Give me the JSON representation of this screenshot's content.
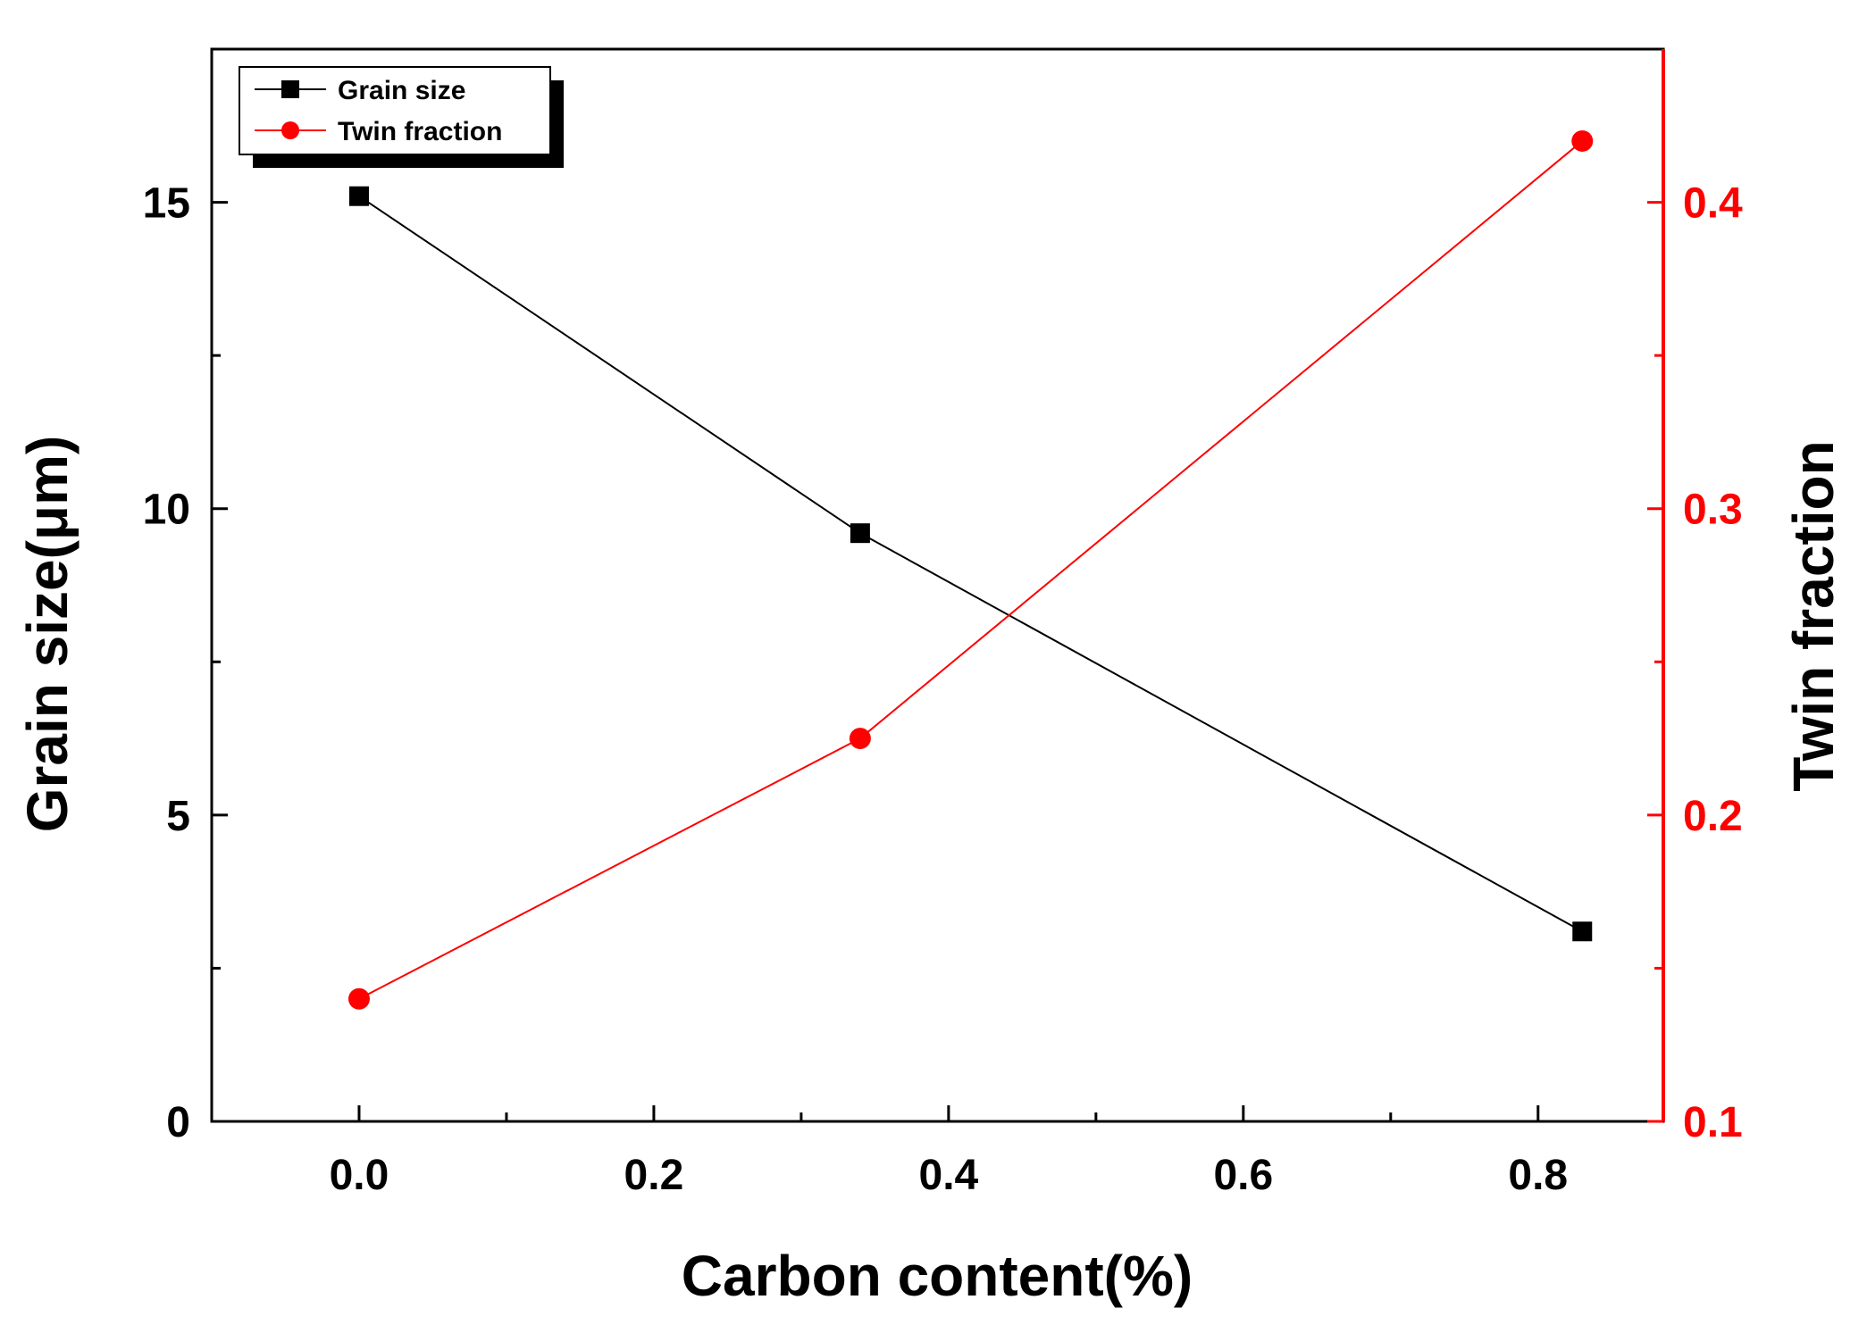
{
  "chart_data": {
    "type": "line",
    "title": "",
    "xlabel": "Carbon content(%)",
    "ylabel": "Grain size(μm)",
    "y2label": "Twin fraction",
    "xlim": [
      -0.1,
      0.885
    ],
    "ylim": [
      0,
      17.5
    ],
    "y2lim": [
      0.1,
      0.45
    ],
    "x_ticks": [
      0.0,
      0.2,
      0.4,
      0.6,
      0.8
    ],
    "x_tick_labels": [
      "0.0",
      "0.2",
      "0.4",
      "0.6",
      "0.8"
    ],
    "y_ticks": [
      0,
      5,
      10,
      15
    ],
    "y_tick_labels": [
      "0",
      "5",
      "10",
      "15"
    ],
    "y2_ticks": [
      0.1,
      0.2,
      0.3,
      0.4
    ],
    "y2_tick_labels": [
      "0.1",
      "0.2",
      "0.3",
      "0.4"
    ],
    "grid": false,
    "legend_position": "top-left",
    "series": [
      {
        "name": "Grain size",
        "axis": "left",
        "marker": "square",
        "color": "#000000",
        "x": [
          0.0,
          0.34,
          0.83
        ],
        "values": [
          15.1,
          9.6,
          3.1
        ]
      },
      {
        "name": "Twin fraction",
        "axis": "right",
        "marker": "circle",
        "color": "#ff0000",
        "x": [
          0.0,
          0.34,
          0.83
        ],
        "values": [
          0.14,
          0.225,
          0.42
        ]
      }
    ]
  }
}
